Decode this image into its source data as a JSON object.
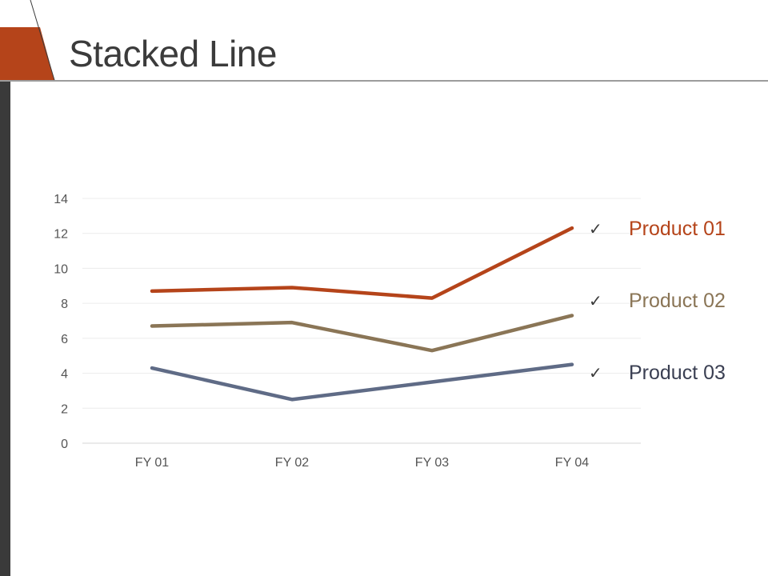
{
  "slide": {
    "title": "Stacked Line",
    "accent_color": "#b5441a",
    "bar_color": "#3a3a3a"
  },
  "chart_data": {
    "type": "line",
    "categories": [
      "FY 01",
      "FY 02",
      "FY 03",
      "FY 04"
    ],
    "series": [
      {
        "name": "Product 01",
        "color": "#b5441a",
        "values": [
          8.7,
          8.9,
          8.3,
          12.3
        ]
      },
      {
        "name": "Product 02",
        "color": "#8a7556",
        "values": [
          6.7,
          6.9,
          5.3,
          7.3
        ]
      },
      {
        "name": "Product 03",
        "color": "#5f6b86",
        "values": [
          4.3,
          2.5,
          3.5,
          4.5
        ]
      }
    ],
    "yticks": [
      0,
      2,
      4,
      6,
      8,
      10,
      12,
      14
    ],
    "ylim": [
      0,
      14
    ],
    "grid": true,
    "legend": "right",
    "legend_marker_icon": "checkmark-icon"
  }
}
